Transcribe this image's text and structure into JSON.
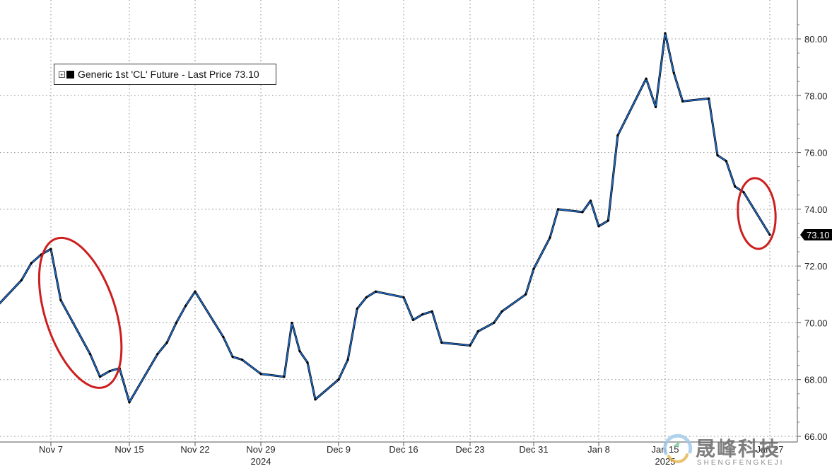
{
  "chart_data": {
    "type": "line",
    "title": "",
    "xlabel": "",
    "ylabel": "",
    "ylim": [
      66,
      81
    ],
    "y_ticks": [
      66,
      68,
      70,
      72,
      74,
      76,
      78,
      80
    ],
    "y_tick_labels": [
      "66.00",
      "68.00",
      "70.00",
      "72.00",
      "74.00",
      "76.00",
      "78.00",
      "80.00"
    ],
    "x_ticks": [
      {
        "label": "Nov 7",
        "date": "2024-11-07"
      },
      {
        "label": "Nov 15",
        "date": "2024-11-15"
      },
      {
        "label": "Nov 22",
        "date": "2024-11-22"
      },
      {
        "label": "Nov 29",
        "date": "2024-11-29"
      },
      {
        "label": "Dec 9",
        "date": "2024-12-09"
      },
      {
        "label": "Dec 16",
        "date": "2024-12-16"
      },
      {
        "label": "Dec 23",
        "date": "2024-12-23"
      },
      {
        "label": "Dec 31",
        "date": "2024-12-31"
      },
      {
        "label": "Jan 8",
        "date": "2025-01-08"
      },
      {
        "label": "Jan 15",
        "date": "2025-01-15"
      },
      {
        "label": "Jan 27",
        "date": "2025-01-27"
      }
    ],
    "year_labels": [
      {
        "label": "2024",
        "near_tick": "Nov 29"
      },
      {
        "label": "2025",
        "near_tick": "Jan 15"
      }
    ],
    "grid": true,
    "legend_position": "top-left",
    "series": [
      {
        "name": "Generic 1st 'CL' Future - Last Price 73.10",
        "color": "#1f6fd1",
        "color_secondary": "#000000",
        "x": [
          "2024-11-01",
          "2024-11-04",
          "2024-11-05",
          "2024-11-06",
          "2024-11-07",
          "2024-11-08",
          "2024-11-11",
          "2024-11-12",
          "2024-11-13",
          "2024-11-14",
          "2024-11-15",
          "2024-11-18",
          "2024-11-19",
          "2024-11-20",
          "2024-11-21",
          "2024-11-22",
          "2024-11-25",
          "2024-11-26",
          "2024-11-27",
          "2024-11-29",
          "2024-12-02",
          "2024-12-03",
          "2024-12-04",
          "2024-12-05",
          "2024-12-06",
          "2024-12-09",
          "2024-12-10",
          "2024-12-11",
          "2024-12-12",
          "2024-12-13",
          "2024-12-16",
          "2024-12-17",
          "2024-12-18",
          "2024-12-19",
          "2024-12-20",
          "2024-12-23",
          "2024-12-24",
          "2024-12-26",
          "2024-12-27",
          "2024-12-30",
          "2024-12-31",
          "2025-01-02",
          "2025-01-03",
          "2025-01-06",
          "2025-01-07",
          "2025-01-08",
          "2025-01-09",
          "2025-01-10",
          "2025-01-13",
          "2025-01-14",
          "2025-01-15",
          "2025-01-16",
          "2025-01-17",
          "2025-01-20",
          "2025-01-21",
          "2025-01-22",
          "2025-01-23",
          "2025-01-24",
          "2025-01-27"
        ],
        "values": [
          70.4,
          71.5,
          72.1,
          72.4,
          72.6,
          70.8,
          68.9,
          68.1,
          68.3,
          68.4,
          67.2,
          68.9,
          69.3,
          70.0,
          70.6,
          71.1,
          69.5,
          68.8,
          68.7,
          68.2,
          68.1,
          70.0,
          69.0,
          68.6,
          67.3,
          68.0,
          68.7,
          70.5,
          70.9,
          71.1,
          70.9,
          70.1,
          70.3,
          70.4,
          69.3,
          69.2,
          69.7,
          70.0,
          70.4,
          71.0,
          71.9,
          73.0,
          74.0,
          73.9,
          74.3,
          73.4,
          73.6,
          76.6,
          78.6,
          77.6,
          80.2,
          78.8,
          77.8,
          77.9,
          75.9,
          75.7,
          74.8,
          74.6,
          73.1
        ]
      }
    ],
    "last_price_label": "73.10",
    "annotations": [
      {
        "shape": "ellipse",
        "color": "#cc1f1f",
        "x_range": [
          "2024-11-07",
          "2024-11-13"
        ]
      },
      {
        "shape": "ellipse",
        "color": "#cc1f1f",
        "x_range": [
          "2025-01-24",
          "2025-01-27"
        ]
      }
    ]
  },
  "legend": {
    "plus_symbol": "+",
    "text": "Generic 1st 'CL' Future - Last Price 73.10"
  },
  "watermark": {
    "title": "晟峰科技",
    "subtitle": "SHENGFENGKEJI"
  }
}
